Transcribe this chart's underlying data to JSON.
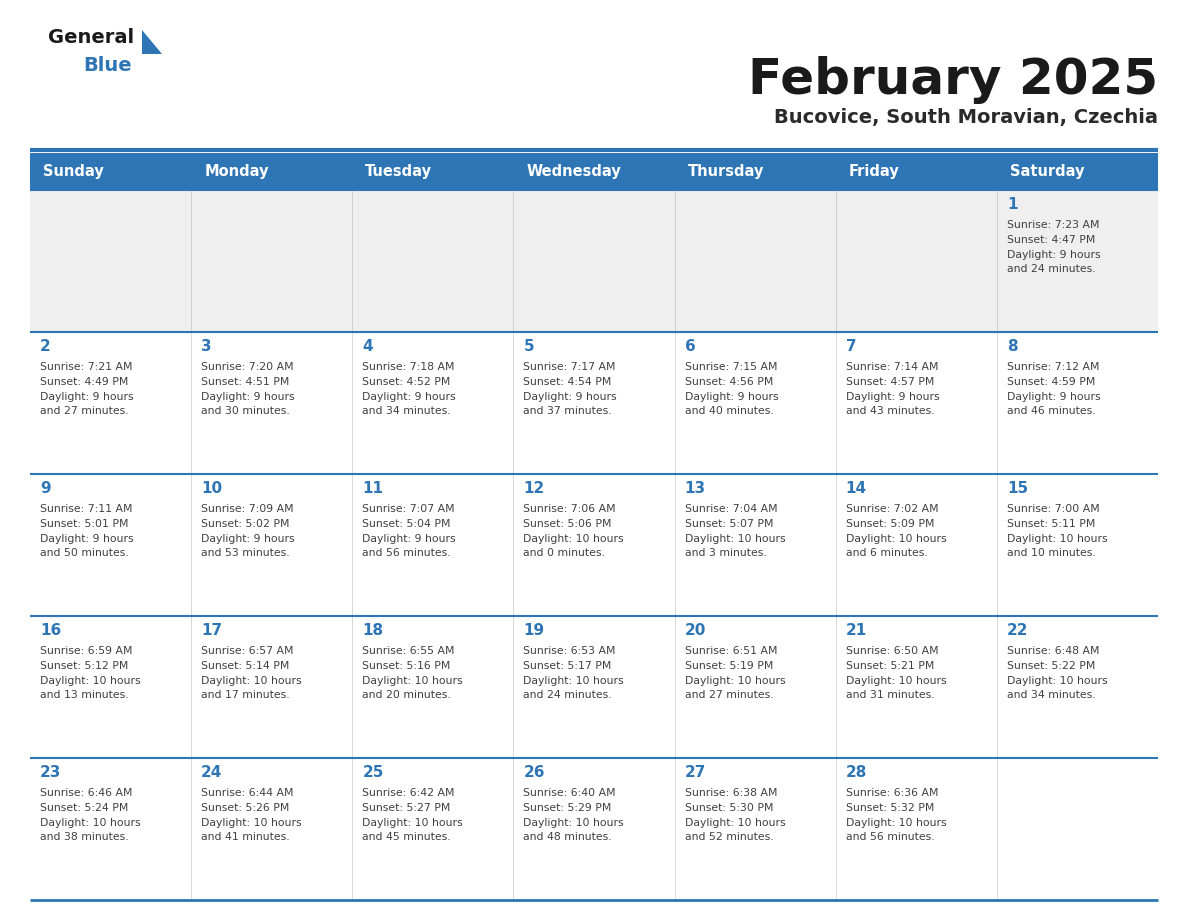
{
  "title": "February 2025",
  "subtitle": "Bucovice, South Moravian, Czechia",
  "days_of_week": [
    "Sunday",
    "Monday",
    "Tuesday",
    "Wednesday",
    "Thursday",
    "Friday",
    "Saturday"
  ],
  "header_bg": "#2E75B6",
  "header_text": "#FFFFFF",
  "cell_bg_white": "#FFFFFF",
  "cell_bg_gray": "#EFEFEF",
  "separator_color": "#2E75B6",
  "day_num_color": "#2E75B6",
  "info_text_color": "#404040",
  "title_color": "#1a1a1a",
  "subtitle_color": "#2a2a2a",
  "logo_general_color": "#1a1a1a",
  "logo_blue_color": "#2E75B6",
  "weeks": [
    {
      "days": [
        {
          "day": null,
          "info": ""
        },
        {
          "day": null,
          "info": ""
        },
        {
          "day": null,
          "info": ""
        },
        {
          "day": null,
          "info": ""
        },
        {
          "day": null,
          "info": ""
        },
        {
          "day": null,
          "info": ""
        },
        {
          "day": 1,
          "info": "Sunrise: 7:23 AM\nSunset: 4:47 PM\nDaylight: 9 hours\nand 24 minutes."
        }
      ]
    },
    {
      "days": [
        {
          "day": 2,
          "info": "Sunrise: 7:21 AM\nSunset: 4:49 PM\nDaylight: 9 hours\nand 27 minutes."
        },
        {
          "day": 3,
          "info": "Sunrise: 7:20 AM\nSunset: 4:51 PM\nDaylight: 9 hours\nand 30 minutes."
        },
        {
          "day": 4,
          "info": "Sunrise: 7:18 AM\nSunset: 4:52 PM\nDaylight: 9 hours\nand 34 minutes."
        },
        {
          "day": 5,
          "info": "Sunrise: 7:17 AM\nSunset: 4:54 PM\nDaylight: 9 hours\nand 37 minutes."
        },
        {
          "day": 6,
          "info": "Sunrise: 7:15 AM\nSunset: 4:56 PM\nDaylight: 9 hours\nand 40 minutes."
        },
        {
          "day": 7,
          "info": "Sunrise: 7:14 AM\nSunset: 4:57 PM\nDaylight: 9 hours\nand 43 minutes."
        },
        {
          "day": 8,
          "info": "Sunrise: 7:12 AM\nSunset: 4:59 PM\nDaylight: 9 hours\nand 46 minutes."
        }
      ]
    },
    {
      "days": [
        {
          "day": 9,
          "info": "Sunrise: 7:11 AM\nSunset: 5:01 PM\nDaylight: 9 hours\nand 50 minutes."
        },
        {
          "day": 10,
          "info": "Sunrise: 7:09 AM\nSunset: 5:02 PM\nDaylight: 9 hours\nand 53 minutes."
        },
        {
          "day": 11,
          "info": "Sunrise: 7:07 AM\nSunset: 5:04 PM\nDaylight: 9 hours\nand 56 minutes."
        },
        {
          "day": 12,
          "info": "Sunrise: 7:06 AM\nSunset: 5:06 PM\nDaylight: 10 hours\nand 0 minutes."
        },
        {
          "day": 13,
          "info": "Sunrise: 7:04 AM\nSunset: 5:07 PM\nDaylight: 10 hours\nand 3 minutes."
        },
        {
          "day": 14,
          "info": "Sunrise: 7:02 AM\nSunset: 5:09 PM\nDaylight: 10 hours\nand 6 minutes."
        },
        {
          "day": 15,
          "info": "Sunrise: 7:00 AM\nSunset: 5:11 PM\nDaylight: 10 hours\nand 10 minutes."
        }
      ]
    },
    {
      "days": [
        {
          "day": 16,
          "info": "Sunrise: 6:59 AM\nSunset: 5:12 PM\nDaylight: 10 hours\nand 13 minutes."
        },
        {
          "day": 17,
          "info": "Sunrise: 6:57 AM\nSunset: 5:14 PM\nDaylight: 10 hours\nand 17 minutes."
        },
        {
          "day": 18,
          "info": "Sunrise: 6:55 AM\nSunset: 5:16 PM\nDaylight: 10 hours\nand 20 minutes."
        },
        {
          "day": 19,
          "info": "Sunrise: 6:53 AM\nSunset: 5:17 PM\nDaylight: 10 hours\nand 24 minutes."
        },
        {
          "day": 20,
          "info": "Sunrise: 6:51 AM\nSunset: 5:19 PM\nDaylight: 10 hours\nand 27 minutes."
        },
        {
          "day": 21,
          "info": "Sunrise: 6:50 AM\nSunset: 5:21 PM\nDaylight: 10 hours\nand 31 minutes."
        },
        {
          "day": 22,
          "info": "Sunrise: 6:48 AM\nSunset: 5:22 PM\nDaylight: 10 hours\nand 34 minutes."
        }
      ]
    },
    {
      "days": [
        {
          "day": 23,
          "info": "Sunrise: 6:46 AM\nSunset: 5:24 PM\nDaylight: 10 hours\nand 38 minutes."
        },
        {
          "day": 24,
          "info": "Sunrise: 6:44 AM\nSunset: 5:26 PM\nDaylight: 10 hours\nand 41 minutes."
        },
        {
          "day": 25,
          "info": "Sunrise: 6:42 AM\nSunset: 5:27 PM\nDaylight: 10 hours\nand 45 minutes."
        },
        {
          "day": 26,
          "info": "Sunrise: 6:40 AM\nSunset: 5:29 PM\nDaylight: 10 hours\nand 48 minutes."
        },
        {
          "day": 27,
          "info": "Sunrise: 6:38 AM\nSunset: 5:30 PM\nDaylight: 10 hours\nand 52 minutes."
        },
        {
          "day": 28,
          "info": "Sunrise: 6:36 AM\nSunset: 5:32 PM\nDaylight: 10 hours\nand 56 minutes."
        },
        {
          "day": null,
          "info": ""
        }
      ]
    }
  ]
}
